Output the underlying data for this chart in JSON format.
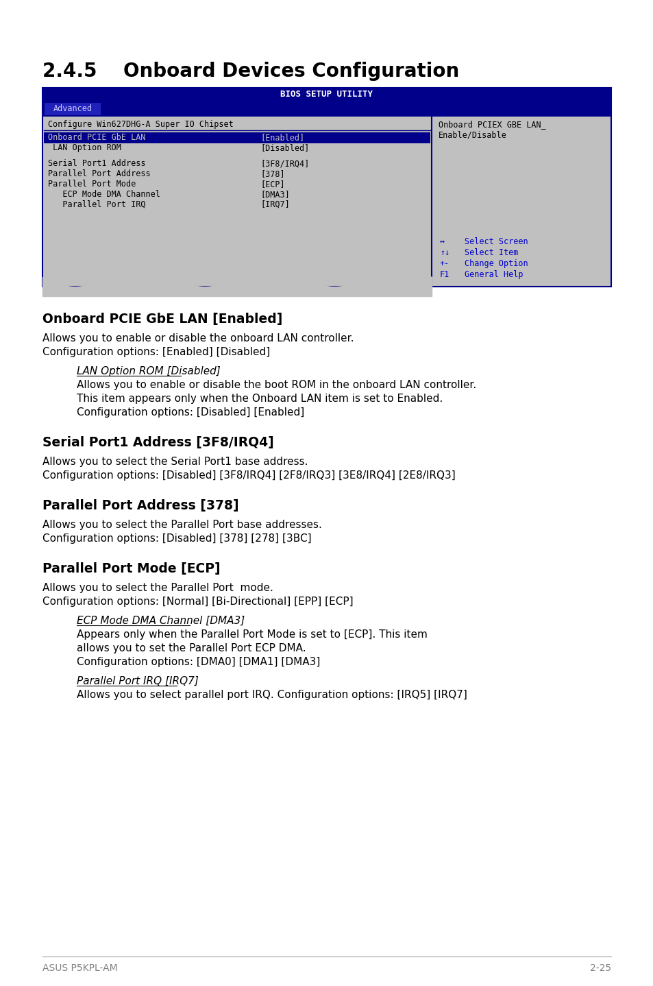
{
  "page_title": "2.4.5    Onboard Devices Configuration",
  "bios_title": "BIOS SETUP UTILITY",
  "bios_tab": "Advanced",
  "bios_left_header": "Configure Win627DHG-A Super IO Chipset",
  "bios_right_header": "Onboard PCIEX GBE LAN_\nEnable/Disable",
  "bios_items": [
    {
      "label": "Onboard PCIE GbE LAN",
      "value": "[Enabled]",
      "highlighted": true
    },
    {
      "label": " LAN Option ROM",
      "value": "[Disabled]",
      "highlighted": false
    },
    {
      "label": "",
      "value": "",
      "highlighted": false
    },
    {
      "label": "Serial Port1 Address",
      "value": "[3F8/IRQ4]",
      "highlighted": false
    },
    {
      "label": "Parallel Port Address",
      "value": "[378]",
      "highlighted": false
    },
    {
      "label": "Parallel Port Mode",
      "value": "[ECP]",
      "highlighted": false
    },
    {
      "label": "   ECP Mode DMA Channel",
      "value": "[DMA3]",
      "highlighted": false
    },
    {
      "label": "   Parallel Port IRQ",
      "value": "[IRQ7]",
      "highlighted": false
    }
  ],
  "nav_keys": [
    "↔",
    "↑↓",
    "+-",
    "F1"
  ],
  "nav_vals": [
    "Select Screen",
    "Select Item",
    "Change Option",
    "General Help"
  ],
  "sections": [
    {
      "heading": "Onboard PCIE GbE LAN [Enabled]",
      "body": [
        {
          "type": "text",
          "content": "Allows you to enable or disable the onboard LAN controller."
        },
        {
          "type": "text",
          "content": "Configuration options: [Enabled] [Disabled]"
        },
        {
          "type": "gap"
        },
        {
          "type": "subheading_italic",
          "content": "LAN Option ROM [Disabled]"
        },
        {
          "type": "indent_text",
          "content": "Allows you to enable or disable the boot ROM in the onboard LAN controller."
        },
        {
          "type": "indent_text",
          "content": "This item appears only when the Onboard LAN item is set to Enabled."
        },
        {
          "type": "indent_text",
          "content": "Configuration options: [Disabled] [Enabled]"
        }
      ]
    },
    {
      "heading": "Serial Port1 Address [3F8/IRQ4]",
      "body": [
        {
          "type": "text",
          "content": "Allows you to select the Serial Port1 base address."
        },
        {
          "type": "text",
          "content": "Configuration options: [Disabled] [3F8/IRQ4] [2F8/IRQ3] [3E8/IRQ4] [2E8/IRQ3]"
        }
      ]
    },
    {
      "heading": "Parallel Port Address [378]",
      "body": [
        {
          "type": "text",
          "content": "Allows you to select the Parallel Port base addresses."
        },
        {
          "type": "text",
          "content": "Configuration options: [Disabled] [378] [278] [3BC]"
        }
      ]
    },
    {
      "heading": "Parallel Port Mode [ECP]",
      "body": [
        {
          "type": "text",
          "content": "Allows you to select the Parallel Port  mode."
        },
        {
          "type": "text",
          "content": "Configuration options: [Normal] [Bi-Directional] [EPP] [ECP]"
        },
        {
          "type": "gap"
        },
        {
          "type": "subheading_italic",
          "content": "ECP Mode DMA Channel [DMA3]"
        },
        {
          "type": "indent_text",
          "content": "Appears only when the Parallel Port Mode is set to [ECP]. This item"
        },
        {
          "type": "indent_text",
          "content": "allows you to set the Parallel Port ECP DMA."
        },
        {
          "type": "indent_text",
          "content": "Configuration options: [DMA0] [DMA1] [DMA3]"
        },
        {
          "type": "gap"
        },
        {
          "type": "subheading_italic",
          "content": "Parallel Port IRQ [IRQ7]"
        },
        {
          "type": "indent_text",
          "content": "Allows you to select parallel port IRQ. Configuration options: [IRQ5] [IRQ7]"
        }
      ]
    }
  ],
  "footer_left": "ASUS P5KPL-AM",
  "footer_right": "2-25",
  "bg_color": "#ffffff",
  "bios_bg": "#c0c0c0",
  "bios_header_bg": "#00008b",
  "bios_header_fg": "#ffffff",
  "bios_highlight_bg": "#00008b",
  "bios_highlight_fg": "#c0c0c0",
  "bios_nav_fg": "#0000cd",
  "bios_divider_color": "#00008b",
  "heading_color": "#000000",
  "text_color": "#000000",
  "footer_color": "#808080"
}
